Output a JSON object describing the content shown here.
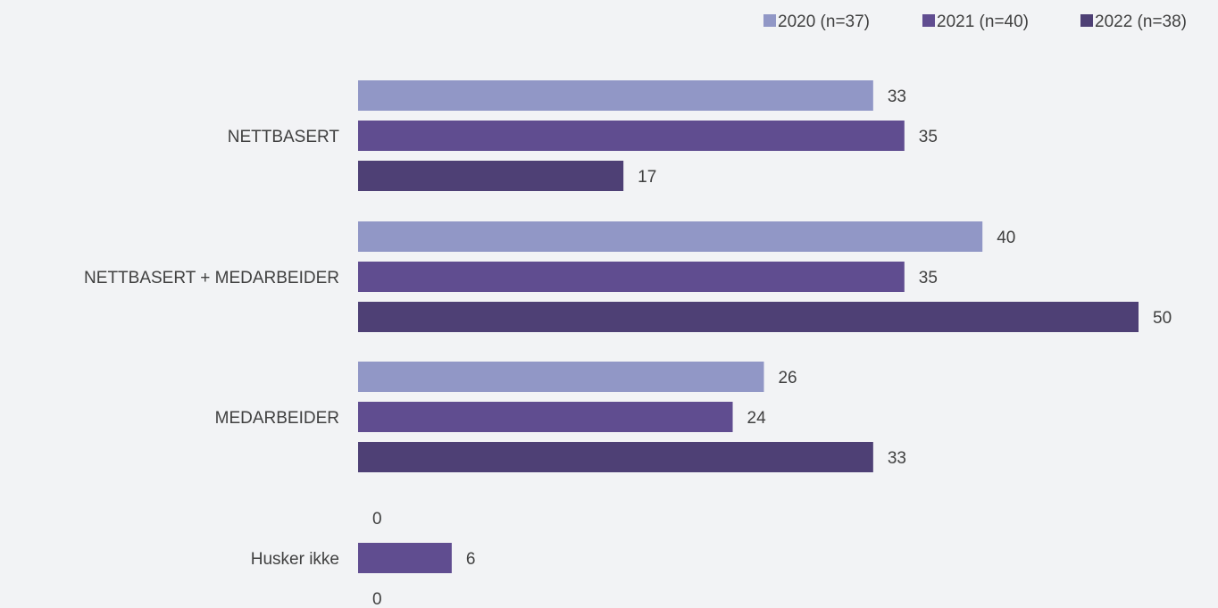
{
  "chart_data": {
    "type": "bar",
    "orientation": "horizontal",
    "categories": [
      "NETTBASERT",
      "NETTBASERT + MEDARBEIDER",
      "MEDARBEIDER",
      "Husker ikke"
    ],
    "series": [
      {
        "name": "2020 (n=37)",
        "color": "#9197c6",
        "values": [
          33,
          40,
          26,
          0
        ]
      },
      {
        "name": "2021 (n=40)",
        "color": "#604d90",
        "values": [
          35,
          35,
          24,
          6
        ]
      },
      {
        "name": "2022 (n=38)",
        "color": "#4e4075",
        "values": [
          17,
          50,
          33,
          0
        ]
      }
    ],
    "xlim": [
      0,
      50
    ],
    "grid": false,
    "legend_position": "top-right",
    "data_labels": true,
    "title": "",
    "xlabel": "",
    "ylabel": ""
  }
}
